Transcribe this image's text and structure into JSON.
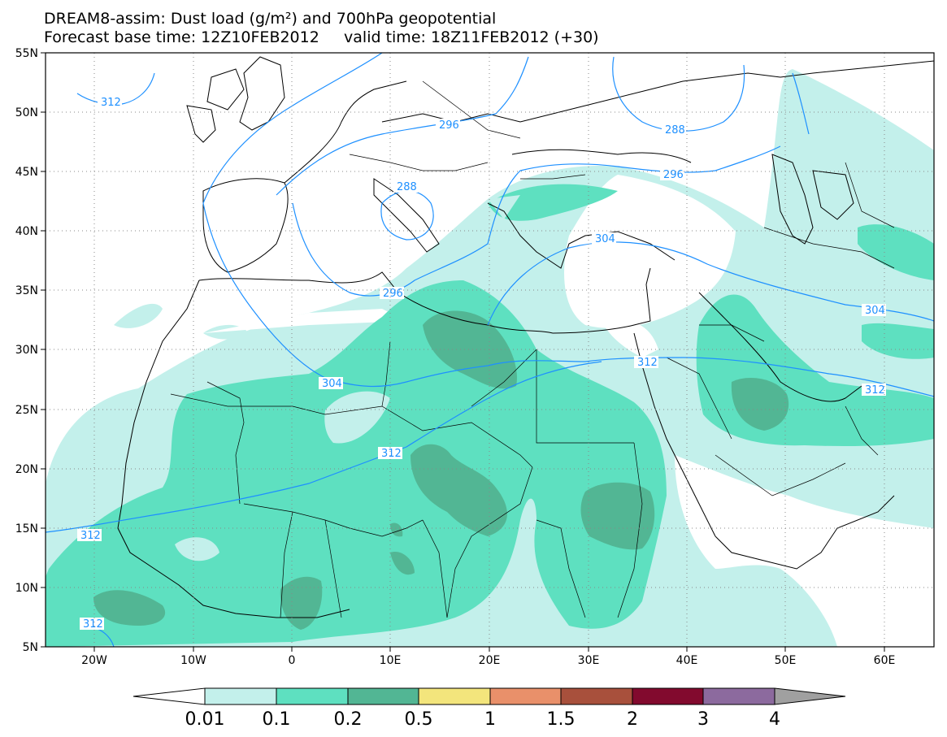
{
  "title_line1": "DREAM8-assim: Dust load (g/m²) and 700hPa geopotential",
  "forecast_base": "Forecast base time: 12Z10FEB2012",
  "valid_time": "valid time: 18Z11FEB2012 (+30)",
  "lon_ticks": [
    "20W",
    "10W",
    "0",
    "10E",
    "20E",
    "30E",
    "40E",
    "50E",
    "60E"
  ],
  "lat_ticks": [
    "55N",
    "50N",
    "45N",
    "40N",
    "35N",
    "30N",
    "25N",
    "20N",
    "15N",
    "10N",
    "5N"
  ],
  "contour_labels": [
    "312",
    "296",
    "288",
    "288",
    "296",
    "304",
    "296",
    "304",
    "312",
    "312",
    "312",
    "312",
    "304",
    "312"
  ],
  "colorbar": {
    "labels": [
      "0.01",
      "0.1",
      "0.2",
      "0.5",
      "1",
      "1.5",
      "2",
      "3",
      "4"
    ],
    "colors": [
      "#ffffff",
      "#c3f0eb",
      "#5ee0c0",
      "#52b694",
      "#f3e57c",
      "#e9906a",
      "#a8503c",
      "#820a2e",
      "#8c6a9e",
      "#a0a0a0"
    ]
  },
  "colors": {
    "dust_001": "#c3f0eb",
    "dust_01": "#5ee0c0",
    "dust_02": "#52b694",
    "contour": "#1e90ff"
  }
}
